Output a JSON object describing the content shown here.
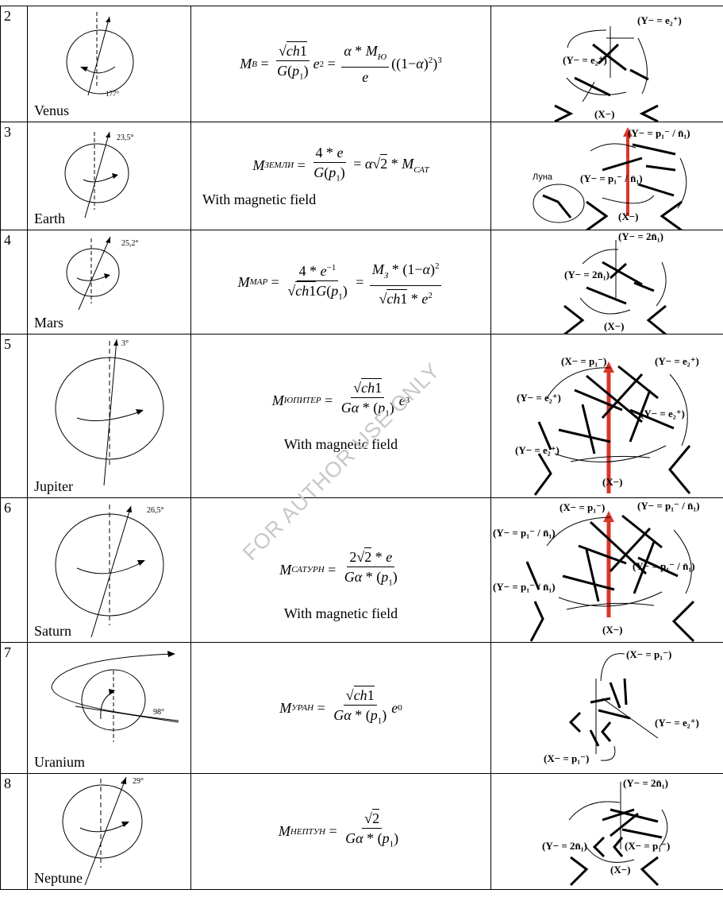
{
  "rows": [
    {
      "num": "2",
      "name": "Venus",
      "angle": "177°",
      "note": "",
      "labels": [
        "(Y− = e₂⁺)",
        "(Y− = e₂⁺)",
        "(X−)"
      ]
    },
    {
      "num": "3",
      "name": "Earth",
      "angle": "23,5°",
      "note": "With magnetic field",
      "labels": [
        "(Y− = p₁⁻ / n̄₁)",
        "(Y− = p₁⁻ / n̄₁)",
        "(X−)",
        "Луна"
      ]
    },
    {
      "num": "4",
      "name": "Mars",
      "angle": "25,2°",
      "note": "",
      "labels": [
        "(Y− = 2n̄₁)",
        "(Y− = 2n̄₁)",
        "(X−)"
      ]
    },
    {
      "num": "5",
      "name": "Jupiter",
      "angle": "3°",
      "note": "With magnetic field",
      "labels": [
        "(X− = p₁⁻)",
        "(Y− = e₂⁺)",
        "(Y− = e₂⁺)",
        "(Y− = e₂⁺)",
        "(Y− = e₂⁺)",
        "(X−)"
      ]
    },
    {
      "num": "6",
      "name": "Saturn",
      "angle": "26,5°",
      "note": "With magnetic field",
      "labels": [
        "(X− = p₁⁻)",
        "(Y− = p₁⁻ / n̄₁)",
        "(Y− = p₁⁻ / n̄₁)",
        "(Y− = p₁⁻ / n̄₁)",
        "(Y− = p₁⁻ / n̄₁)",
        "(X−)"
      ]
    },
    {
      "num": "7",
      "name": "Uranium",
      "angle": "98°",
      "note": "",
      "labels": [
        "(X− = p₁⁻)",
        "(Y− = e₂⁺)",
        "(X− = p₁⁻)"
      ]
    },
    {
      "num": "8",
      "name": "Neptune",
      "angle": "29°",
      "note": "",
      "labels": [
        "(Y− = 2n̄₁)",
        "(Y− = 2n̄₁)",
        "(X− = p₁⁻)",
        "(X−)"
      ]
    }
  ],
  "formulas": {
    "venus": {
      "sub": "В",
      "sub2": "Ю"
    },
    "earth": {
      "sub": "ЗЕМЛИ",
      "sub2": "САТ"
    },
    "mars": {
      "sub": "МАР",
      "sub2": "З"
    },
    "jupiter": {
      "sub": "ЮПИТЕР"
    },
    "saturn": {
      "sub": "САТУРН"
    },
    "uranium": {
      "sub": "УРАН"
    },
    "neptune": {
      "sub": "НЕПТУН"
    }
  },
  "watermark": "FOR AUTHOR USE ONLY"
}
